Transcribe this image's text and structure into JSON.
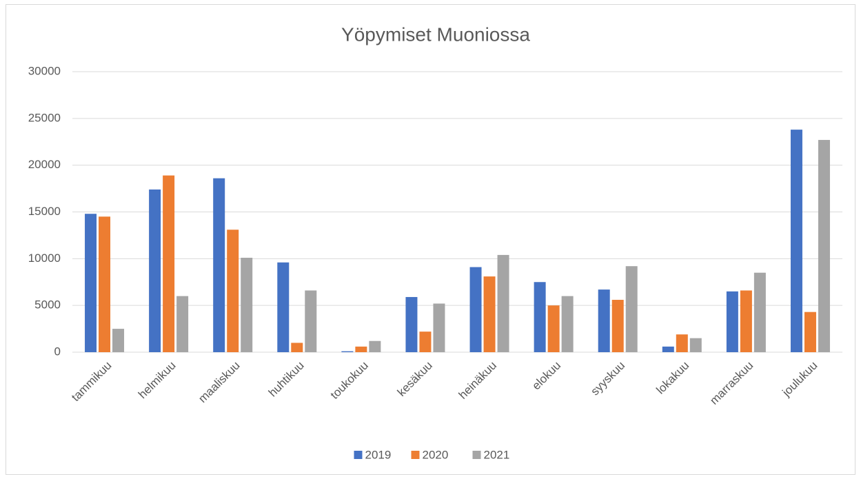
{
  "chart_data": {
    "type": "bar",
    "title": "Yöpymiset Muoniossa",
    "categories": [
      "tammikuu",
      "helmikuu",
      "maaliskuu",
      "huhtikuu",
      "toukokuu",
      "kesäkuu",
      "heinäkuu",
      "elokuu",
      "syyskuu",
      "lokakuu",
      "marraskuu",
      "joulukuu"
    ],
    "series": [
      {
        "name": "2019",
        "color": "#4472c4",
        "values": [
          14800,
          17400,
          18600,
          9600,
          100,
          5900,
          9100,
          7500,
          6700,
          600,
          6500,
          23800
        ]
      },
      {
        "name": "2020",
        "color": "#ed7d31",
        "values": [
          14500,
          18900,
          13100,
          1000,
          600,
          2200,
          8100,
          5000,
          5600,
          1900,
          6600,
          4300
        ]
      },
      {
        "name": "2021",
        "color": "#a5a5a5",
        "values": [
          2500,
          6000,
          10100,
          6600,
          1200,
          5200,
          10400,
          6000,
          9200,
          1500,
          8500,
          22700
        ]
      }
    ],
    "ylim": [
      0,
      30000
    ],
    "yticks": [
      0,
      5000,
      10000,
      15000,
      20000,
      25000,
      30000
    ],
    "grid": true,
    "legend": "bottom"
  }
}
